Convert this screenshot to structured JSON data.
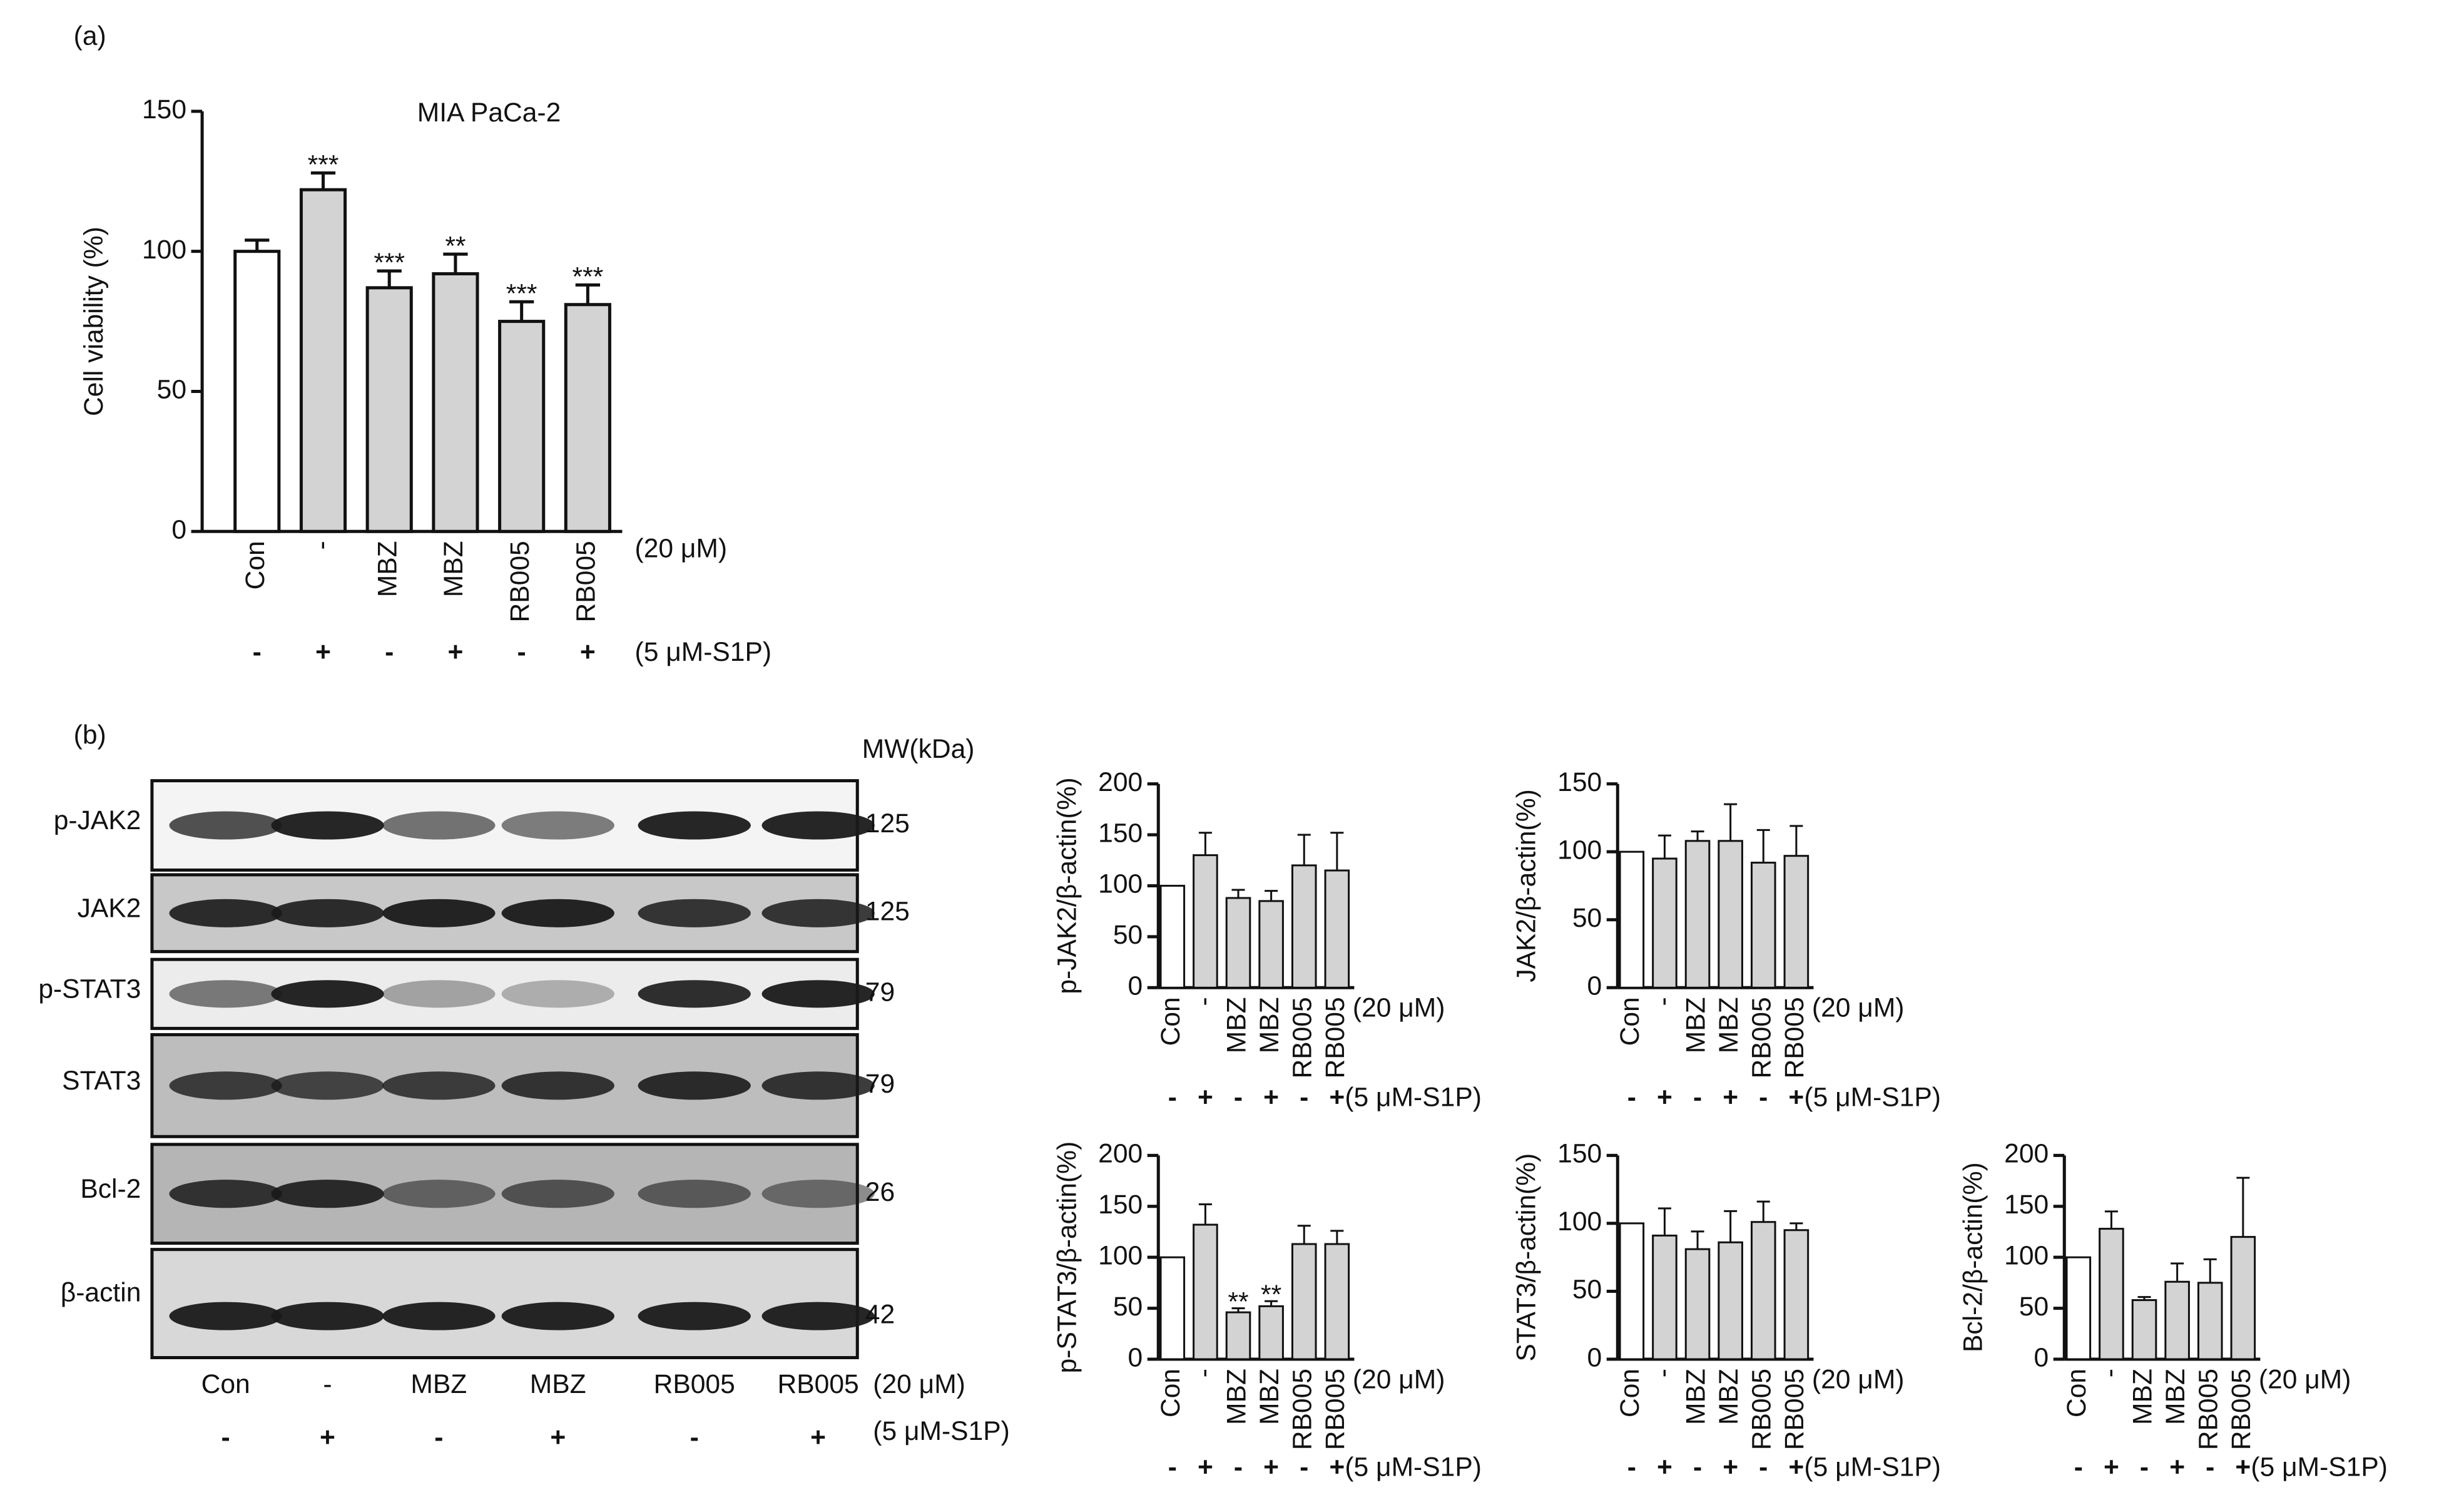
{
  "panel_labels": [
    "(a)",
    "(b)"
  ],
  "chart_data": [
    {
      "type": "bar",
      "title": "MIA PaCa-2",
      "ylabel": "Cell viability (%)",
      "categories": [
        "Con",
        "-",
        "MBZ",
        "MBZ",
        "RB005",
        "RB005"
      ],
      "category_note": "(20 μM)",
      "s1p": [
        "-",
        "+",
        "-",
        "+",
        "-",
        "+"
      ],
      "s1p_note": "(5 μM-S1P)",
      "values": [
        100,
        122,
        87,
        92,
        75,
        81
      ],
      "errors": [
        4,
        6,
        6,
        7,
        7,
        7
      ],
      "annotations": [
        null,
        "***",
        "***",
        "**",
        "***",
        "***"
      ],
      "colors": [
        "#ffffff",
        "#d3d3d3",
        "#d3d3d3",
        "#d3d3d3",
        "#d3d3d3",
        "#d3d3d3"
      ],
      "ylim": [
        0,
        150
      ],
      "yticks": [
        0,
        50,
        100,
        150
      ]
    },
    {
      "type": "bar",
      "ylabel": "p-JAK2/β-actin(%)",
      "categories": [
        "Con",
        "-",
        "MBZ",
        "MBZ",
        "RB005",
        "RB005"
      ],
      "category_note": "(20 μM)",
      "s1p": [
        "-",
        "+",
        "-",
        "+",
        "-",
        "+"
      ],
      "s1p_note": "(5 μM-S1P)",
      "values": [
        100,
        130,
        88,
        85,
        120,
        115
      ],
      "errors": [
        null,
        22,
        8,
        10,
        30,
        37
      ],
      "annotations": [
        null,
        null,
        null,
        null,
        null,
        null
      ],
      "colors": [
        "#ffffff",
        "#d3d3d3",
        "#d3d3d3",
        "#d3d3d3",
        "#d3d3d3",
        "#d3d3d3"
      ],
      "ylim": [
        0,
        200
      ],
      "yticks": [
        0,
        50,
        100,
        150,
        200
      ]
    },
    {
      "type": "bar",
      "ylabel": "JAK2/β-actin(%)",
      "categories": [
        "Con",
        "-",
        "MBZ",
        "MBZ",
        "RB005",
        "RB005"
      ],
      "category_note": "(20 μM)",
      "s1p": [
        "-",
        "+",
        "-",
        "+",
        "-",
        "+"
      ],
      "s1p_note": "(5 μM-S1P)",
      "values": [
        100,
        95,
        108,
        108,
        92,
        97
      ],
      "errors": [
        null,
        17,
        7,
        27,
        24,
        22
      ],
      "annotations": [
        null,
        null,
        null,
        null,
        null,
        null
      ],
      "colors": [
        "#ffffff",
        "#d3d3d3",
        "#d3d3d3",
        "#d3d3d3",
        "#d3d3d3",
        "#d3d3d3"
      ],
      "ylim": [
        0,
        150
      ],
      "yticks": [
        0,
        50,
        100,
        150
      ]
    },
    {
      "type": "bar",
      "ylabel": "p-STAT3/β-actin(%)",
      "categories": [
        "Con",
        "-",
        "MBZ",
        "MBZ",
        "RB005",
        "RB005"
      ],
      "category_note": "(20 μM)",
      "s1p": [
        "-",
        "+",
        "-",
        "+",
        "-",
        "+"
      ],
      "s1p_note": "(5 μM-S1P)",
      "values": [
        100,
        132,
        46,
        52,
        113,
        113
      ],
      "errors": [
        null,
        20,
        4,
        5,
        18,
        13
      ],
      "annotations": [
        null,
        null,
        "**",
        "**",
        null,
        null
      ],
      "colors": [
        "#ffffff",
        "#d3d3d3",
        "#d3d3d3",
        "#d3d3d3",
        "#d3d3d3",
        "#d3d3d3"
      ],
      "ylim": [
        0,
        200
      ],
      "yticks": [
        0,
        50,
        100,
        150,
        200
      ]
    },
    {
      "type": "bar",
      "ylabel": "STAT3/β-actin(%)",
      "categories": [
        "Con",
        "-",
        "MBZ",
        "MBZ",
        "RB005",
        "RB005"
      ],
      "category_note": "(20 μM)",
      "s1p": [
        "-",
        "+",
        "-",
        "+",
        "-",
        "+"
      ],
      "s1p_note": "(5 μM-S1P)",
      "values": [
        100,
        91,
        81,
        86,
        101,
        95
      ],
      "errors": [
        null,
        20,
        13,
        23,
        15,
        5
      ],
      "annotations": [
        null,
        null,
        null,
        null,
        null,
        null
      ],
      "colors": [
        "#ffffff",
        "#d3d3d3",
        "#d3d3d3",
        "#d3d3d3",
        "#d3d3d3",
        "#d3d3d3"
      ],
      "ylim": [
        0,
        150
      ],
      "yticks": [
        0,
        50,
        100,
        150
      ]
    },
    {
      "type": "bar",
      "ylabel": "Bcl-2/β-actin(%)",
      "categories": [
        "Con",
        "-",
        "MBZ",
        "MBZ",
        "RB005",
        "RB005"
      ],
      "category_note": "(20 μM)",
      "s1p": [
        "-",
        "+",
        "-",
        "+",
        "-",
        "+"
      ],
      "s1p_note": "(5 μM-S1P)",
      "values": [
        100,
        128,
        58,
        76,
        75,
        120
      ],
      "errors": [
        null,
        17,
        3,
        18,
        23,
        58
      ],
      "annotations": [
        null,
        null,
        null,
        null,
        null,
        null
      ],
      "colors": [
        "#ffffff",
        "#d3d3d3",
        "#d3d3d3",
        "#d3d3d3",
        "#d3d3d3",
        "#d3d3d3"
      ],
      "ylim": [
        0,
        200
      ],
      "yticks": [
        0,
        50,
        100,
        150,
        200
      ]
    }
  ],
  "blot": {
    "mw_header": "MW(kDa)",
    "rows": [
      {
        "label": "p-JAK2",
        "mw": 125
      },
      {
        "label": "JAK2",
        "mw": 125
      },
      {
        "label": "p-STAT3",
        "mw": 79
      },
      {
        "label": "STAT3",
        "mw": 79
      },
      {
        "label": "Bcl-2",
        "mw": 26
      },
      {
        "label": "β-actin",
        "mw": 42
      }
    ],
    "lanes": [
      "Con",
      "-",
      "MBZ",
      "MBZ",
      "RB005",
      "RB005"
    ],
    "lane_note": "(20 μM)",
    "s1p": [
      "-",
      "+",
      "-",
      "+",
      "-",
      "+"
    ],
    "s1p_note": "(5 μM-S1P)"
  }
}
